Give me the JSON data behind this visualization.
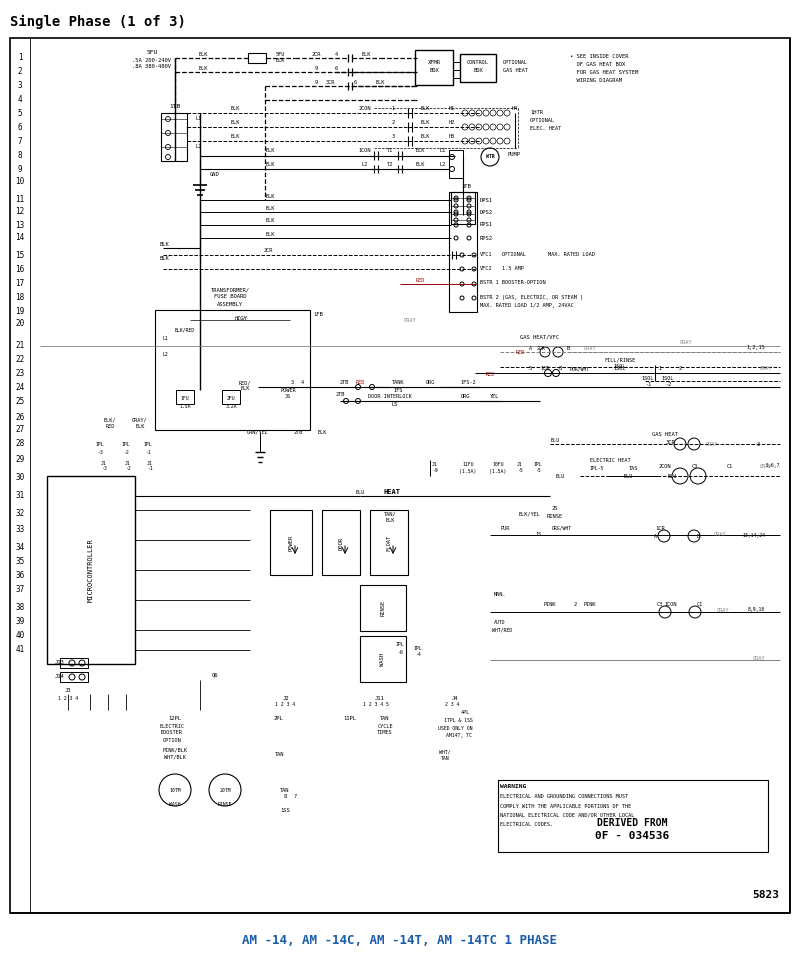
{
  "title": "Single Phase (1 of 3)",
  "bottom_label": "AM -14, AM -14C, AM -14T, AM -14TC 1 PHASE",
  "page_num": "5823",
  "derived_from_line1": "DERIVED FROM",
  "derived_from_line2": "0F - 034536",
  "warning_line1": "WARNING",
  "warning_line2": "ELECTRICAL AND GROUNDING CONNECTIONS MUST",
  "warning_line3": "COMPLY WITH THE APPLICABLE PORTIONS OF THE",
  "warning_line4": "NATIONAL ELECTRICAL CODE AND/OR OTHER LOCAL",
  "warning_line5": "ELECTRICAL CODES.",
  "bg_color": "#ffffff",
  "lc": "#000000",
  "title_color": "#000000",
  "bottom_color": "#1a5ca8",
  "fig_w": 8.0,
  "fig_h": 9.65,
  "dpi": 100,
  "note1": "• SEE INSIDE COVER",
  "note2": "  OF GAS HEAT BOX",
  "note3": "  FOR GAS HEAT SYSTEM",
  "note4": "  WIRING DIAGRAM"
}
